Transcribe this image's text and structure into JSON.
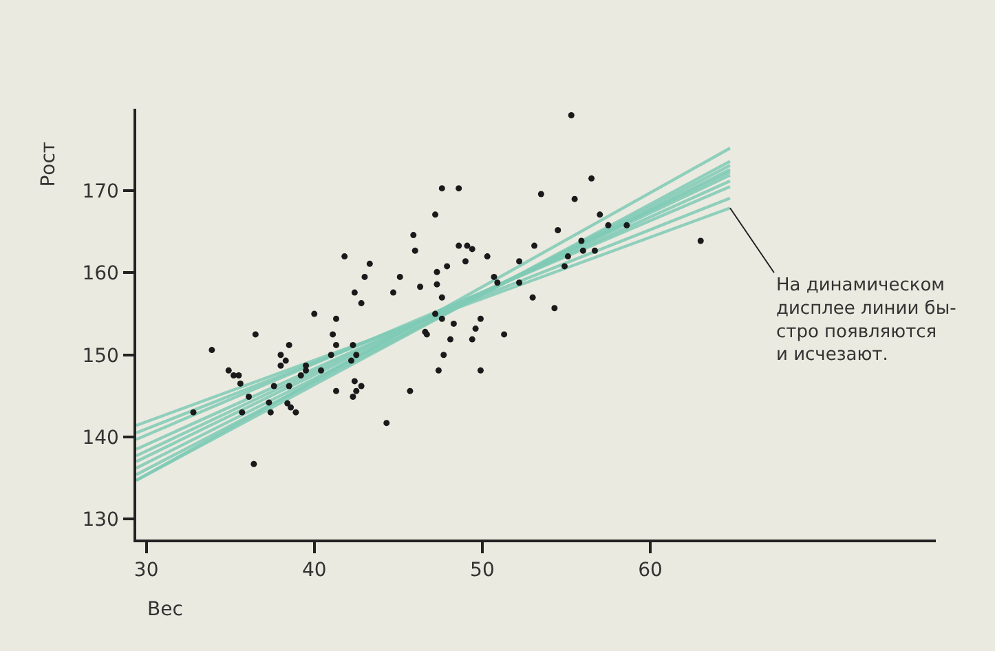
{
  "chart_data": {
    "type": "scatter",
    "xlabel": "Вес",
    "ylabel": "Рост",
    "xlim": [
      29.4,
      77
    ],
    "ylim": [
      127.5,
      180
    ],
    "xticks": [
      30,
      40,
      50,
      60
    ],
    "yticks": [
      130,
      140,
      150,
      160,
      170
    ],
    "grid": false,
    "series": [
      {
        "marker": "circle",
        "color": "#1a1a1a",
        "x": [
          32.8,
          33.9,
          36.5,
          36.4,
          34.9,
          35.2,
          35.5,
          35.6,
          35.7,
          36.1,
          37.3,
          37.4,
          37.6,
          38.0,
          38.0,
          38.3,
          38.5,
          38.5,
          38.4,
          38.6,
          38.9,
          39.2,
          39.5,
          39.5,
          40.0,
          40.4,
          41.0,
          41.1,
          41.3,
          41.3,
          41.3,
          41.8,
          42.2,
          42.3,
          42.5,
          42.4,
          42.8,
          43.0,
          43.3,
          42.4,
          42.5,
          42.8,
          42.3,
          44.3,
          44.7,
          45.1,
          45.7,
          45.9,
          46.0,
          46.3,
          46.6,
          46.7,
          47.2,
          47.3,
          47.3,
          47.2,
          47.4,
          55.3,
          47.6,
          48.6,
          48.6,
          49.1,
          49.4,
          49.0,
          50.3,
          47.9,
          47.6,
          47.6,
          48.3,
          48.1,
          49.4,
          49.6,
          49.9,
          51.3,
          47.7,
          49.9,
          50.7,
          50.9,
          52.2,
          52.2,
          53.0,
          53.1,
          53.5,
          54.3,
          54.5,
          54.9,
          55.1,
          55.5,
          55.9,
          56.0,
          56.5,
          56.7,
          57.0,
          57.5,
          58.6,
          63.0
        ],
        "values": [
          143.0,
          150.6,
          152.5,
          136.7,
          148.1,
          147.5,
          147.5,
          146.5,
          143.0,
          144.9,
          144.2,
          143.0,
          146.2,
          148.7,
          150.0,
          149.3,
          151.2,
          146.2,
          144.1,
          143.6,
          143.0,
          147.5,
          148.1,
          148.7,
          155.0,
          148.1,
          150.0,
          152.5,
          151.2,
          154.4,
          145.6,
          162.0,
          149.3,
          151.2,
          150.0,
          157.6,
          156.3,
          159.5,
          161.1,
          146.8,
          145.6,
          146.2,
          144.9,
          141.7,
          157.6,
          159.5,
          145.6,
          164.6,
          162.7,
          158.3,
          152.8,
          152.5,
          167.1,
          160.1,
          158.6,
          155.0,
          148.1,
          179.2,
          170.3,
          170.3,
          163.3,
          163.3,
          162.9,
          161.4,
          162.0,
          160.8,
          157.0,
          154.4,
          153.8,
          151.9,
          151.9,
          153.2,
          154.4,
          152.5,
          150.0,
          148.1,
          159.5,
          158.8,
          158.8,
          161.4,
          157.0,
          163.3,
          169.6,
          155.7,
          165.2,
          160.8,
          162.0,
          169.0,
          163.9,
          162.7,
          171.5,
          162.7,
          167.1,
          165.8,
          165.8,
          163.9
        ]
      },
      {
        "type": "line",
        "color": "#7fcbb6",
        "x": [
          29.4,
          64.75
        ],
        "values": [
          141.4,
          167.9
        ]
      },
      {
        "type": "line",
        "color": "#7fcbb6",
        "x": [
          29.4,
          64.75
        ],
        "values": [
          140.5,
          169.1
        ]
      },
      {
        "type": "line",
        "color": "#7fcbb6",
        "x": [
          29.4,
          64.75
        ],
        "values": [
          139.7,
          170.5
        ]
      },
      {
        "type": "line",
        "color": "#7fcbb6",
        "x": [
          29.4,
          64.75
        ],
        "values": [
          138.5,
          171.2
        ]
      },
      {
        "type": "line",
        "color": "#7fcbb6",
        "x": [
          29.4,
          64.75
        ],
        "values": [
          137.7,
          171.9
        ]
      },
      {
        "type": "line",
        "color": "#7fcbb6",
        "x": [
          29.4,
          64.75
        ],
        "values": [
          137.0,
          172.3
        ]
      },
      {
        "type": "line",
        "color": "#7fcbb6",
        "x": [
          29.4,
          64.75
        ],
        "values": [
          136.2,
          172.6
        ]
      },
      {
        "type": "line",
        "color": "#7fcbb6",
        "x": [
          29.4,
          64.75
        ],
        "values": [
          135.4,
          173.1
        ]
      },
      {
        "type": "line",
        "color": "#7fcbb6",
        "x": [
          29.4,
          64.75
        ],
        "values": [
          134.7,
          173.6
        ]
      },
      {
        "type": "line",
        "color": "#7fcbb6",
        "x": [
          29.4,
          64.75
        ],
        "values": [
          134.7,
          175.2
        ]
      }
    ],
    "annotations": [
      {
        "text": "На динамическом\nдисплее линии бы-\nстро появляются\nи исчезают.",
        "x": 64.75,
        "y": 167.9
      }
    ]
  }
}
